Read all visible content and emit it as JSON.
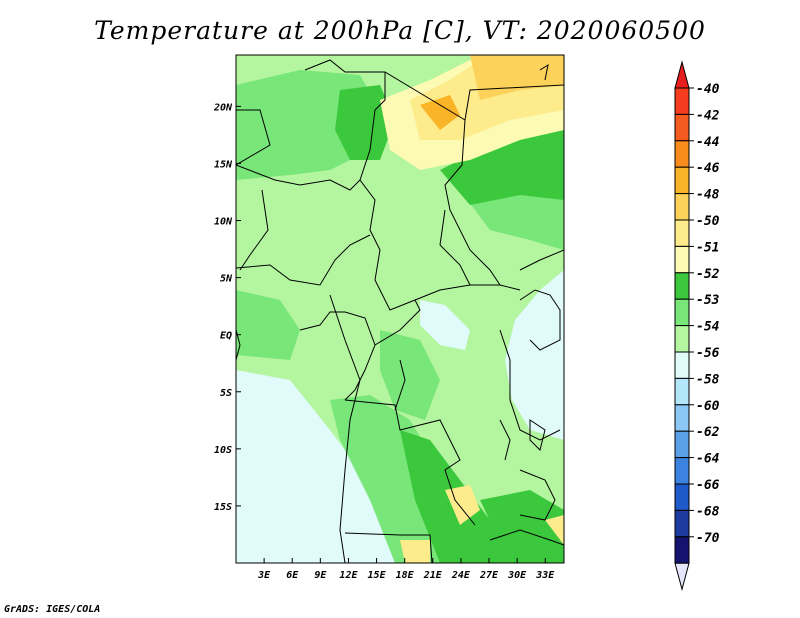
{
  "title": "Temperature at 200hPa [C], VT: 2020060500",
  "credit": "GrADS: IGES/COLA",
  "map": {
    "lon_range": [
      0,
      35
    ],
    "lat_range": [
      -20,
      24.5
    ],
    "lon_ticks": [
      {
        "value": 3,
        "label": "3E"
      },
      {
        "value": 6,
        "label": "6E"
      },
      {
        "value": 9,
        "label": "9E"
      },
      {
        "value": 12,
        "label": "12E"
      },
      {
        "value": 15,
        "label": "15E"
      },
      {
        "value": 18,
        "label": "18E"
      },
      {
        "value": 21,
        "label": "21E"
      },
      {
        "value": 24,
        "label": "24E"
      },
      {
        "value": 27,
        "label": "27E"
      },
      {
        "value": 30,
        "label": "30E"
      },
      {
        "value": 33,
        "label": "33E"
      }
    ],
    "lat_ticks": [
      {
        "value": 20,
        "label": "20N"
      },
      {
        "value": 15,
        "label": "15N"
      },
      {
        "value": 10,
        "label": "10N"
      },
      {
        "value": 5,
        "label": "5N"
      },
      {
        "value": 0,
        "label": "EQ"
      },
      {
        "value": -5,
        "label": "5S"
      },
      {
        "value": -10,
        "label": "10S"
      },
      {
        "value": -15,
        "label": "15S"
      }
    ]
  },
  "colorbar": {
    "levels": [
      {
        "label": "-40",
        "color": "#f53c1e"
      },
      {
        "label": "-42",
        "color": "#f55a1e"
      },
      {
        "label": "-44",
        "color": "#fa8c1e"
      },
      {
        "label": "-46",
        "color": "#fab428"
      },
      {
        "label": "-48",
        "color": "#fcd25a"
      },
      {
        "label": "-50",
        "color": "#fdeb8c"
      },
      {
        "label": "-51",
        "color": "#fdfab4"
      },
      {
        "label": "-52",
        "color": "#3cc83c"
      },
      {
        "label": "-53",
        "color": "#78e678"
      },
      {
        "label": "-54",
        "color": "#b4f5a0"
      },
      {
        "label": "-56",
        "color": "#e1fafa"
      },
      {
        "label": "-58",
        "color": "#b4e6fa"
      },
      {
        "label": "-60",
        "color": "#8cc8f5"
      },
      {
        "label": "-62",
        "color": "#5aa0e6"
      },
      {
        "label": "-64",
        "color": "#3c82e1"
      },
      {
        "label": "-66",
        "color": "#1e5ac8"
      },
      {
        "label": "-68",
        "color": "#1e3ca0"
      },
      {
        "label": "-70",
        "color": "#14146e"
      }
    ],
    "top_color": "#e61e1e",
    "bottom_color": "#e6e6fa"
  }
}
